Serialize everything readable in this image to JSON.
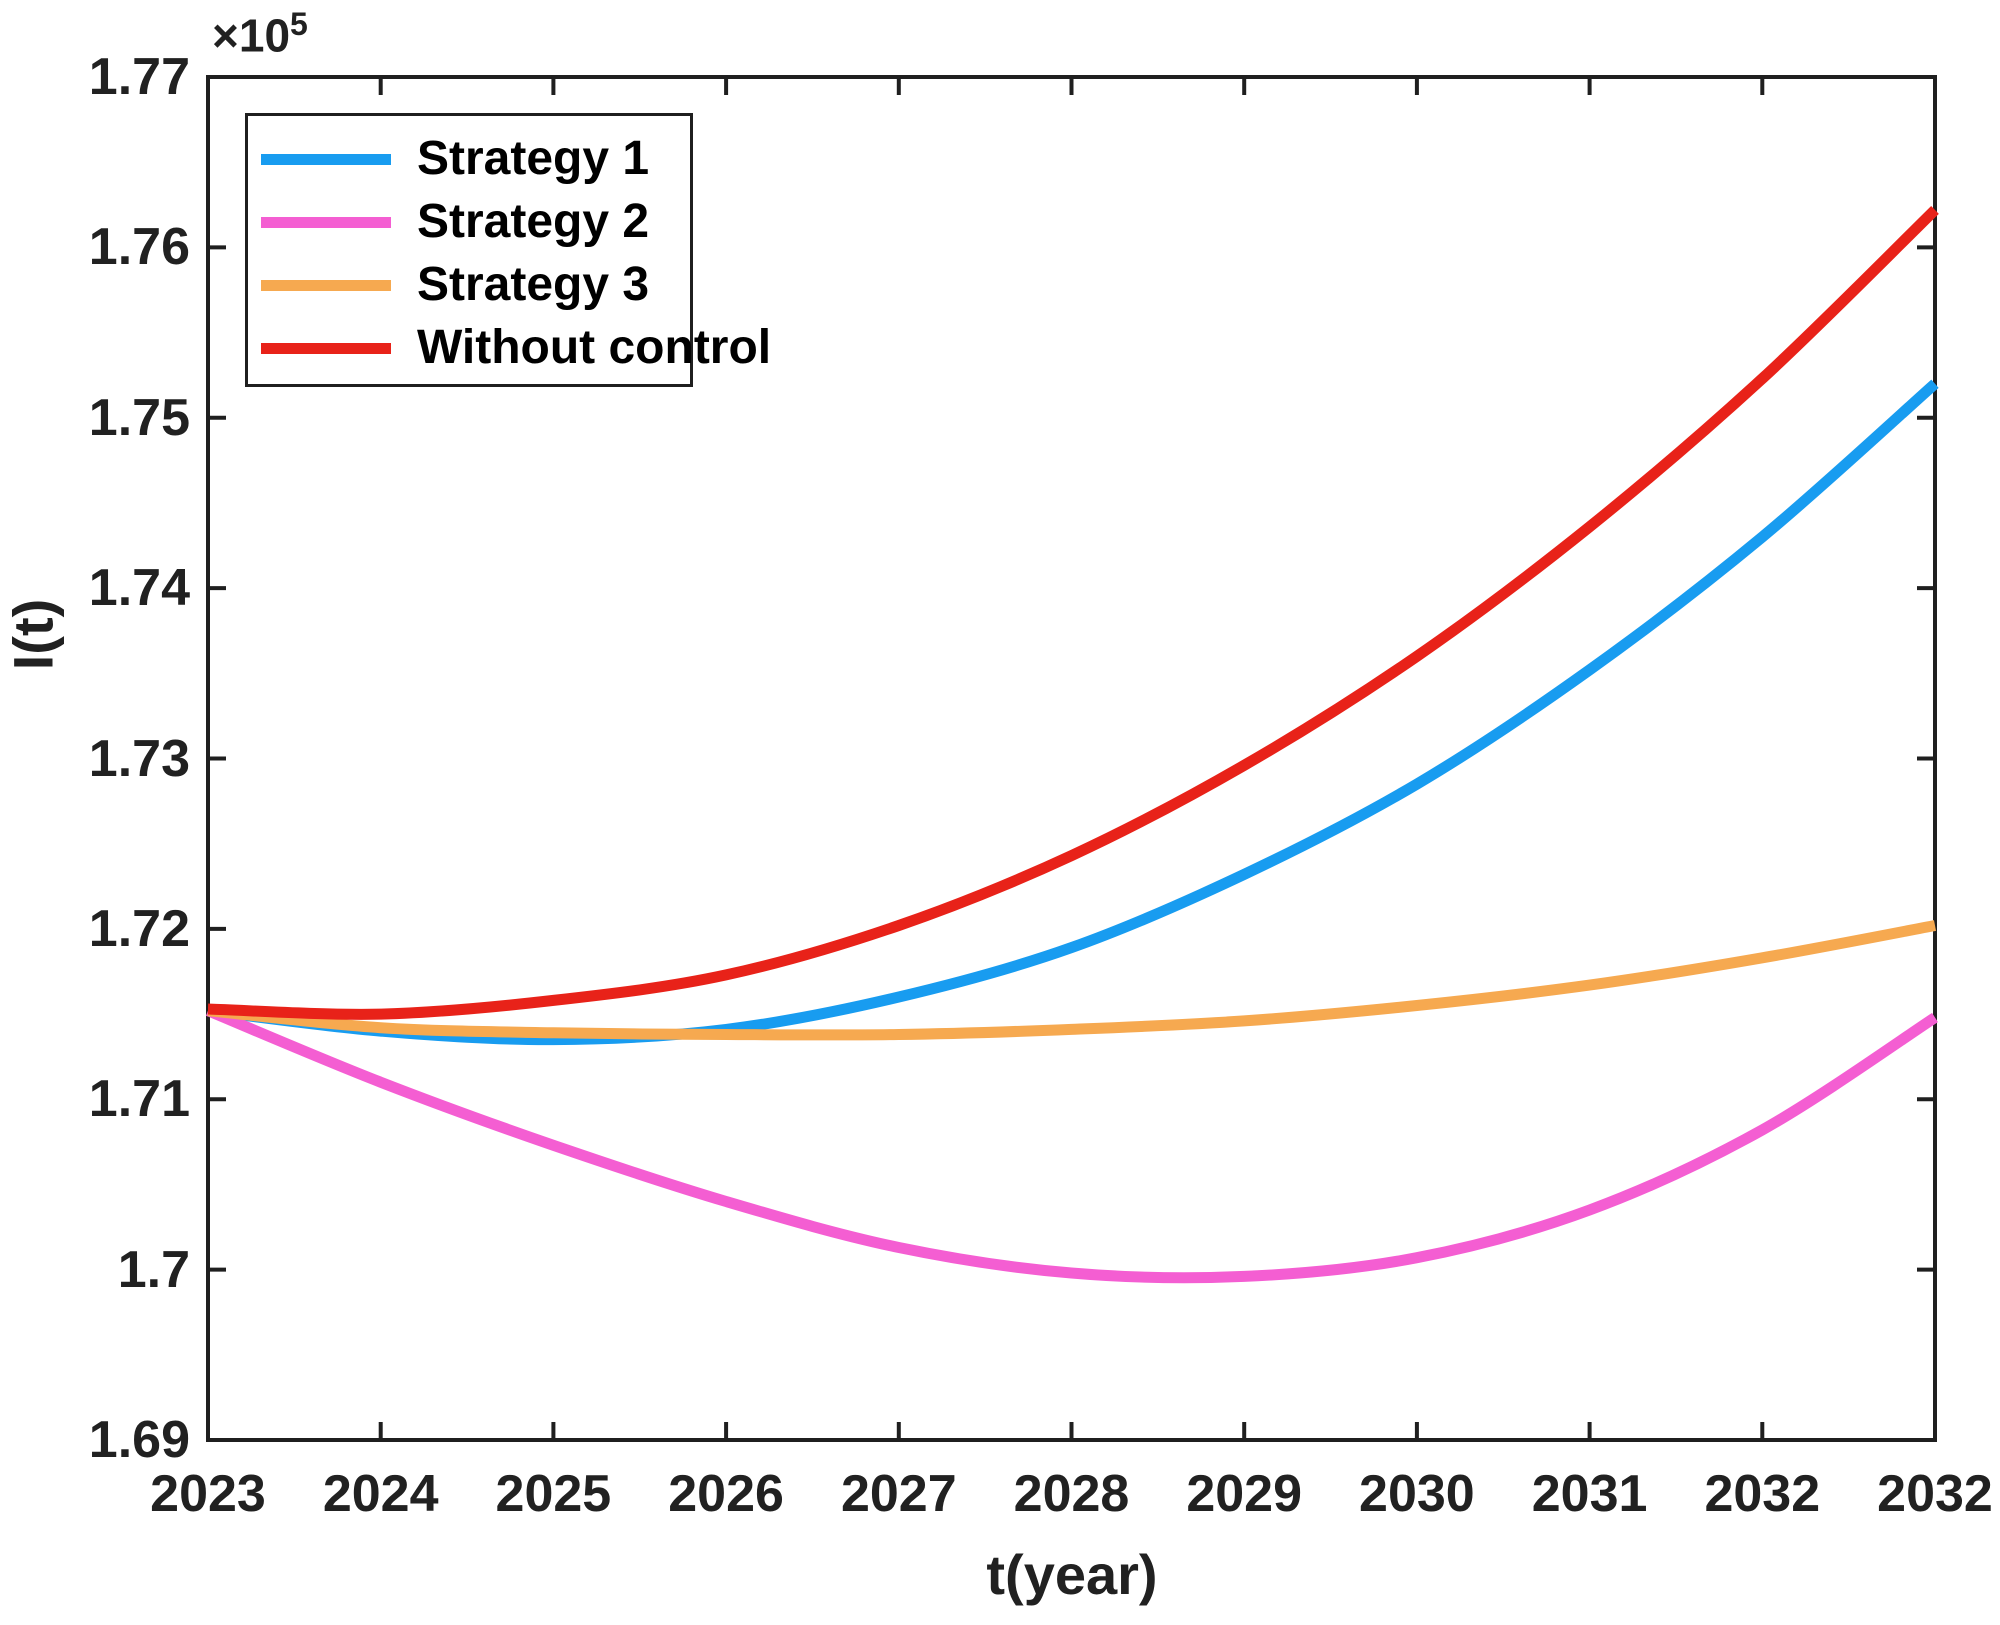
{
  "figure": {
    "background": "#ffffff",
    "text_color": "#212121",
    "axis_color": "#1f1f1f",
    "exponent_base": "×10",
    "exponent_power": "5",
    "xlabel": "t(year)",
    "ylabel": "I(t)"
  },
  "legend": {
    "items": [
      {
        "label": "Strategy 1",
        "color": "#189CF0"
      },
      {
        "label": "Strategy 2",
        "color": "#F45ED2"
      },
      {
        "label": "Strategy 3",
        "color": "#F6A950"
      },
      {
        "label": "Without control",
        "color": "#E82219"
      }
    ]
  },
  "chart_data": {
    "type": "line",
    "title": "",
    "xlabel": "t(year)",
    "ylabel": "I(t)",
    "y_scale": "values are ×10^5",
    "x_tick_labels": [
      "2023",
      "2024",
      "2025",
      "2026",
      "2027",
      "2028",
      "2029",
      "2030",
      "2031",
      "2032",
      "2032"
    ],
    "y_tick_labels": [
      "1.77",
      "1.76",
      "1.75",
      "1.74",
      "1.73",
      "1.72",
      "1.71",
      "1.7",
      "1.69"
    ],
    "ylim": [
      1.69,
      1.77
    ],
    "grid": false,
    "legend_position": "top-left",
    "series": [
      {
        "name": "Strategy 1",
        "color": "#189CF0",
        "values": [
          1.7152,
          1.714,
          1.7135,
          1.7141,
          1.716,
          1.7189,
          1.7232,
          1.7285,
          1.7352,
          1.743,
          1.752
        ]
      },
      {
        "name": "Strategy 2",
        "color": "#F45ED2",
        "values": [
          1.7152,
          1.711,
          1.7073,
          1.704,
          1.7013,
          1.6998,
          1.6996,
          1.7007,
          1.7035,
          1.7082,
          1.7148
        ]
      },
      {
        "name": "Strategy 3",
        "color": "#F6A950",
        "values": [
          1.7152,
          1.7142,
          1.7139,
          1.7138,
          1.7138,
          1.7141,
          1.7146,
          1.7155,
          1.7167,
          1.7183,
          1.7202
        ]
      },
      {
        "name": "Without control",
        "color": "#E82219",
        "values": [
          1.7153,
          1.715,
          1.7158,
          1.7173,
          1.7202,
          1.7243,
          1.7296,
          1.736,
          1.7436,
          1.7523,
          1.7622
        ]
      }
    ]
  }
}
